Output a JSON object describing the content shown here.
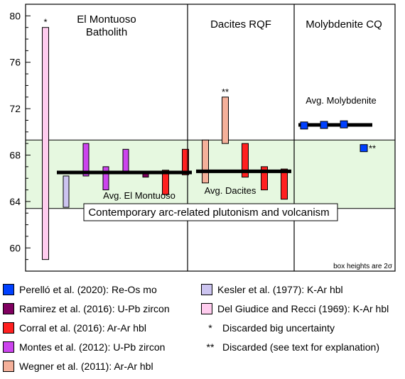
{
  "chart_data": {
    "type": "bar",
    "ylim": [
      58,
      81
    ],
    "yticks": [
      60,
      64,
      68,
      72,
      76,
      80
    ],
    "panels": [
      {
        "title_lines": [
          "El Montuoso",
          "Batholith"
        ]
      },
      {
        "title_lines": [
          "Dacites RQF"
        ]
      },
      {
        "title_lines": [
          "Molybdenite CQ"
        ]
      }
    ],
    "band": {
      "low": 63.4,
      "high": 69.3,
      "label": "Contemporary arc-related plutonism and volcanism",
      "color": "#e6f8e0"
    },
    "averages": [
      {
        "label": "Avg. El Montuoso",
        "value": 66.5
      },
      {
        "label": "Avg. Dacites",
        "value": 66.6
      },
      {
        "label": "Avg. Molybdenite",
        "value": 70.6
      }
    ],
    "series": [
      {
        "name": "Perelló et al. (2020): Re-Os mo",
        "color": "#0040ff",
        "marker": "square"
      },
      {
        "name": "Ramirez et al. (2016): U-Pb zircon",
        "color": "#800060"
      },
      {
        "name": "Corral et al. (2016): Ar-Ar hbl",
        "color": "#ff2020"
      },
      {
        "name": "Montes et al. (2012): U-Pb zircon",
        "color": "#cc44ee"
      },
      {
        "name": "Wegner et al. (2011): Ar-Ar hbl",
        "color": "#f4b09a"
      },
      {
        "name": "Kesler et al. (1977): K-Ar hbl",
        "color": "#ccc4f0"
      },
      {
        "name": "Del Giudice and Recci (1969): K-Ar hbl",
        "color": "#ffccee"
      }
    ],
    "boxes": [
      {
        "panel": 0,
        "series": "Del Giudice and Recci (1969): K-Ar hbl",
        "low": 59.0,
        "high": 79.0,
        "flag": "*"
      },
      {
        "panel": 0,
        "series": "Kesler et al. (1977): K-Ar hbl",
        "low": 63.5,
        "high": 66.2
      },
      {
        "panel": 0,
        "series": "Montes et al. (2012): U-Pb zircon",
        "low": 66.2,
        "high": 69.0
      },
      {
        "panel": 0,
        "series": "Montes et al. (2012): U-Pb zircon",
        "low": 65.0,
        "high": 67.0
      },
      {
        "panel": 0,
        "series": "Montes et al. (2012): U-Pb zircon",
        "low": 66.4,
        "high": 68.5
      },
      {
        "panel": 0,
        "series": "Ramirez et al. (2016): U-Pb zircon",
        "low": 66.1,
        "high": 66.6
      },
      {
        "panel": 0,
        "series": "Corral et al. (2016): Ar-Ar hbl",
        "low": 64.6,
        "high": 66.7
      },
      {
        "panel": 0,
        "series": "Corral et al. (2016): Ar-Ar hbl",
        "low": 66.3,
        "high": 68.5
      },
      {
        "panel": 1,
        "series": "Wegner et al. (2011): Ar-Ar hbl",
        "low": 65.6,
        "high": 69.3
      },
      {
        "panel": 1,
        "series": "Wegner et al. (2011): Ar-Ar hbl",
        "low": 69.0,
        "high": 73.0,
        "flag": "**"
      },
      {
        "panel": 1,
        "series": "Corral et al. (2016): Ar-Ar hbl",
        "low": 66.1,
        "high": 69.0
      },
      {
        "panel": 1,
        "series": "Corral et al. (2016): Ar-Ar hbl",
        "low": 65.0,
        "high": 67.0
      },
      {
        "panel": 1,
        "series": "Corral et al. (2016): Ar-Ar hbl",
        "low": 64.2,
        "high": 66.8
      }
    ],
    "points": [
      {
        "panel": 2,
        "series": "Perelló et al. (2020): Re-Os mo",
        "value": 70.55
      },
      {
        "panel": 2,
        "series": "Perelló et al. (2020): Re-Os mo",
        "value": 70.6
      },
      {
        "panel": 2,
        "series": "Perelló et al. (2020): Re-Os mo",
        "value": 70.65
      },
      {
        "panel": 2,
        "series": "Perelló et al. (2020): Re-Os mo",
        "value": 68.6,
        "flag": "**"
      }
    ],
    "note": "box heights are 2σ"
  },
  "legend": {
    "left": [
      {
        "label": "Perelló et al. (2020): Re-Os mo",
        "color": "#0040ff"
      },
      {
        "label": "Ramirez et al. (2016): U-Pb zircon",
        "color": "#800060"
      },
      {
        "label": "Corral et al. (2016): Ar-Ar hbl",
        "color": "#ff2020"
      },
      {
        "label": "Montes et al. (2012): U-Pb zircon",
        "color": "#cc44ee"
      },
      {
        "label": "Wegner et al. (2011): Ar-Ar hbl",
        "color": "#f4b09a"
      }
    ],
    "right": [
      {
        "label": "Kesler et al. (1977): K-Ar hbl",
        "color": "#ccc4f0"
      },
      {
        "label": "Del Giudice and Recci (1969): K-Ar hbl",
        "color": "#ffccee"
      },
      {
        "symbol": "*",
        "label": "Discarded big uncertainty"
      },
      {
        "symbol": "**",
        "label": "Discarded (see text for explanation)"
      }
    ]
  }
}
